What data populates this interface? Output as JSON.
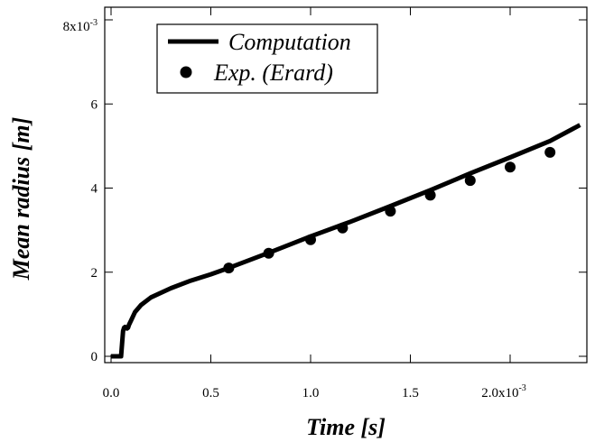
{
  "chart_data": {
    "type": "line",
    "title": "",
    "xlabel": "Time [s]",
    "ylabel": "Mean radius  [m]",
    "xlim": [
      0,
      0.00236
    ],
    "ylim": [
      -0.0001,
      0.008
    ],
    "grid": false,
    "legend_placement": "top-left",
    "x_ticks": [
      {
        "value": 0,
        "label": "0.0"
      },
      {
        "value": 0.0005,
        "label": "0.5"
      },
      {
        "value": 0.001,
        "label": "1.0"
      },
      {
        "value": 0.0015,
        "label": "1.5"
      },
      {
        "value": 0.002,
        "label": "2.0x10",
        "exp": "-3"
      }
    ],
    "y_ticks": [
      {
        "value": 0,
        "label": "0"
      },
      {
        "value": 0.002,
        "label": "2"
      },
      {
        "value": 0.004,
        "label": "4"
      },
      {
        "value": 0.006,
        "label": "6"
      },
      {
        "value": 0.008,
        "label": "8x10",
        "exp": "-3"
      }
    ],
    "series": [
      {
        "name": "Computation",
        "style": "line",
        "color": "#000000",
        "x": [
          0,
          5e-05,
          5.5e-05,
          6e-05,
          6.5e-05,
          7e-05,
          7.5e-05,
          8e-05,
          8.5e-05,
          9e-05,
          0.0001,
          0.00012,
          0.00015,
          0.0002,
          0.0003,
          0.0004,
          0.0005,
          0.0006,
          0.0008,
          0.001,
          0.0012,
          0.0014,
          0.0016,
          0.0018,
          0.002,
          0.0022,
          0.00235
        ],
        "y": [
          0,
          0,
          0.0003,
          0.0006,
          0.00068,
          0.0007,
          0.00068,
          0.00066,
          0.00068,
          0.00075,
          0.00085,
          0.00105,
          0.00122,
          0.0014,
          0.00162,
          0.0018,
          0.00195,
          0.00212,
          0.00248,
          0.00285,
          0.0032,
          0.00357,
          0.00395,
          0.00435,
          0.00473,
          0.00512,
          0.0055
        ]
      },
      {
        "name": "Exp. (Erard)",
        "style": "markers",
        "color": "#000000",
        "x": [
          0.00059,
          0.00079,
          0.001,
          0.00116,
          0.0014,
          0.0016,
          0.0018,
          0.002,
          0.0022
        ],
        "y": [
          0.0021,
          0.00245,
          0.00277,
          0.00305,
          0.00345,
          0.00383,
          0.00418,
          0.0045,
          0.00485
        ]
      }
    ]
  }
}
